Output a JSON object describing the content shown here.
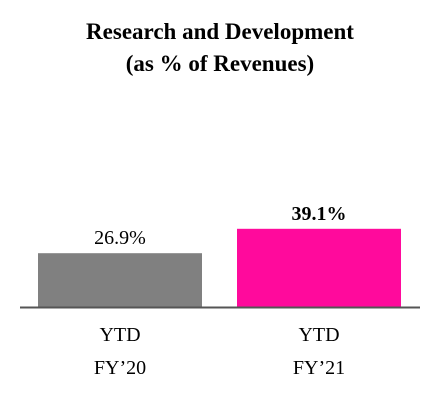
{
  "chart_data": {
    "type": "bar",
    "title_line1": "Research and Development",
    "title_line2": "(as % of Revenues)",
    "categories": [
      {
        "line1": "YTD",
        "line2": "FY’20"
      },
      {
        "line1": "YTD",
        "line2": "FY’21"
      }
    ],
    "values": [
      26.9,
      39.1
    ],
    "value_labels": [
      "26.9%",
      "39.1%"
    ],
    "value_label_bold": [
      false,
      true
    ],
    "colors": [
      "#808080",
      "#ff0a9c"
    ],
    "axis_color": "#555555",
    "grid": false,
    "legend": "none"
  }
}
